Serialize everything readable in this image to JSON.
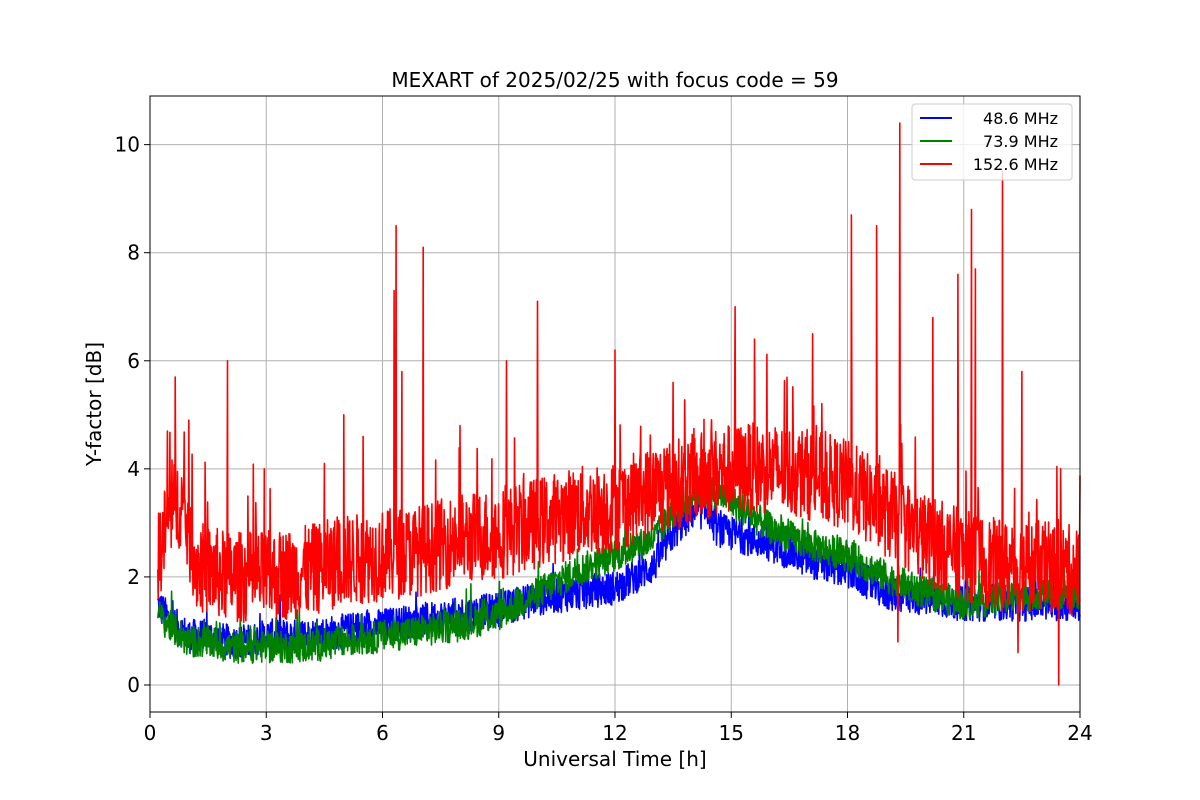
{
  "chart_data": {
    "type": "line",
    "title": "MEXART of 2025/02/25 with focus code = 59",
    "xlabel": "Universal Time [h]",
    "ylabel": "Y-factor [dB]",
    "xlim": [
      0,
      24
    ],
    "ylim": [
      -0.5,
      10.9
    ],
    "xticks": [
      0,
      3,
      6,
      9,
      12,
      15,
      18,
      21,
      24
    ],
    "yticks": [
      0,
      2,
      4,
      6,
      8,
      10
    ],
    "grid": true,
    "legend_position": "top-right",
    "series": [
      {
        "name": "48.6 MHz",
        "color": "#0000ff",
        "noise": 0.32,
        "x": [
          0.2,
          0.5,
          1.0,
          1.5,
          2.0,
          2.5,
          3.0,
          4.0,
          5.0,
          6.0,
          7.0,
          8.0,
          9.0,
          10.0,
          11.0,
          12.0,
          13.0,
          13.5,
          14.0,
          14.5,
          14.55,
          15.0,
          16.0,
          17.0,
          18.0,
          19.0,
          20.0,
          21.0,
          22.0,
          23.0,
          24.0
        ],
        "y": [
          1.5,
          1.2,
          0.9,
          0.9,
          0.8,
          0.8,
          0.9,
          0.9,
          1.0,
          1.1,
          1.2,
          1.3,
          1.4,
          1.6,
          1.7,
          1.8,
          2.2,
          2.8,
          3.2,
          3.2,
          2.9,
          2.8,
          2.6,
          2.3,
          2.1,
          1.7,
          1.6,
          1.5,
          1.5,
          1.5,
          1.5
        ]
      },
      {
        "name": "73.9 MHz",
        "color": "#008000",
        "noise": 0.3,
        "x": [
          0.2,
          0.5,
          1.0,
          1.5,
          2.0,
          3.0,
          4.0,
          5.0,
          6.0,
          7.0,
          8.0,
          9.0,
          10.0,
          11.0,
          12.0,
          13.0,
          13.5,
          14.0,
          14.5,
          15.0,
          16.0,
          17.0,
          18.0,
          19.0,
          20.0,
          21.0,
          22.0,
          23.0,
          24.0
        ],
        "y": [
          1.3,
          1.1,
          0.8,
          0.8,
          0.7,
          0.7,
          0.7,
          0.8,
          0.9,
          1.0,
          1.1,
          1.3,
          1.7,
          2.1,
          2.4,
          2.7,
          3.2,
          3.5,
          3.6,
          3.4,
          2.9,
          2.6,
          2.4,
          2.0,
          1.7,
          1.5,
          1.6,
          1.7,
          1.7
        ]
      },
      {
        "name": "152.6 MHz",
        "color": "#ff0000",
        "noise": 0.85,
        "x": [
          0.2,
          0.5,
          0.8,
          1.2,
          2.0,
          3.0,
          4.0,
          5.0,
          6.0,
          7.0,
          8.0,
          9.0,
          10.0,
          11.0,
          12.0,
          13.0,
          14.0,
          15.0,
          16.0,
          17.0,
          18.0,
          19.0,
          20.0,
          21.0,
          22.0,
          23.0,
          24.0
        ],
        "y": [
          2.3,
          3.2,
          3.4,
          2.2,
          2.0,
          2.0,
          2.1,
          2.3,
          2.4,
          2.5,
          2.7,
          2.8,
          3.0,
          3.2,
          3.3,
          3.6,
          3.8,
          4.0,
          4.0,
          3.9,
          3.7,
          3.2,
          2.7,
          2.4,
          2.2,
          2.2,
          2.1
        ],
        "spikes": [
          [
            0.45,
            4.7
          ],
          [
            0.65,
            5.7
          ],
          [
            1.0,
            4.9
          ],
          [
            2.0,
            6.0
          ],
          [
            2.95,
            4.0
          ],
          [
            4.5,
            4.1
          ],
          [
            5.0,
            5.0
          ],
          [
            5.5,
            4.6
          ],
          [
            6.35,
            8.5
          ],
          [
            6.3,
            7.3
          ],
          [
            6.5,
            5.8
          ],
          [
            7.05,
            8.1
          ],
          [
            8.0,
            4.8
          ],
          [
            9.2,
            6.0
          ],
          [
            10.0,
            7.1
          ],
          [
            12.0,
            6.2
          ],
          [
            13.5,
            5.6
          ],
          [
            15.1,
            7.0
          ],
          [
            15.6,
            6.4
          ],
          [
            17.1,
            6.5
          ],
          [
            18.1,
            8.7
          ],
          [
            18.75,
            8.5
          ],
          [
            19.35,
            10.4
          ],
          [
            20.2,
            6.8
          ],
          [
            20.85,
            7.6
          ],
          [
            21.2,
            8.8
          ],
          [
            21.3,
            7.7
          ],
          [
            22.0,
            9.5
          ],
          [
            22.5,
            5.8
          ],
          [
            23.5,
            4.0
          ]
        ],
        "dips": [
          [
            19.3,
            0.8
          ],
          [
            22.4,
            0.6
          ],
          [
            23.45,
            0.0
          ]
        ]
      }
    ]
  }
}
